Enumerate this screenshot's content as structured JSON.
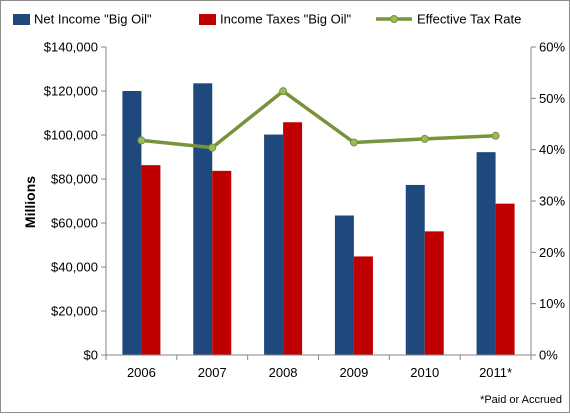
{
  "chart_data": {
    "type": "bar",
    "categories": [
      "2006",
      "2007",
      "2008",
      "2009",
      "2010",
      "2011*"
    ],
    "series": [
      {
        "name": "Net Income \"Big Oil\"",
        "kind": "bar",
        "axis": "left",
        "color": "#1f497d",
        "values": [
          120000,
          123500,
          100200,
          63400,
          77300,
          92200
        ]
      },
      {
        "name": "Income Taxes \"Big Oil\"",
        "kind": "bar",
        "axis": "left",
        "color": "#c00000",
        "values": [
          86300,
          83700,
          105800,
          44800,
          56200,
          68800
        ]
      },
      {
        "name": "Effective Tax Rate",
        "kind": "line",
        "axis": "right",
        "color": "#77933c",
        "values": [
          41.8,
          40.4,
          51.4,
          41.4,
          42.1,
          42.7
        ]
      }
    ],
    "ylabel": "Millions",
    "ylim": [
      0,
      140000
    ],
    "yticks": [
      "$0",
      "$20,000",
      "$40,000",
      "$60,000",
      "$80,000",
      "$100,000",
      "$120,000",
      "$140,000"
    ],
    "y2lim": [
      0,
      60
    ],
    "y2ticks": [
      "0%",
      "10%",
      "20%",
      "30%",
      "40%",
      "50%",
      "60%"
    ],
    "legend_position": "top",
    "grid": false,
    "footnote": "*Paid or Accrued"
  }
}
